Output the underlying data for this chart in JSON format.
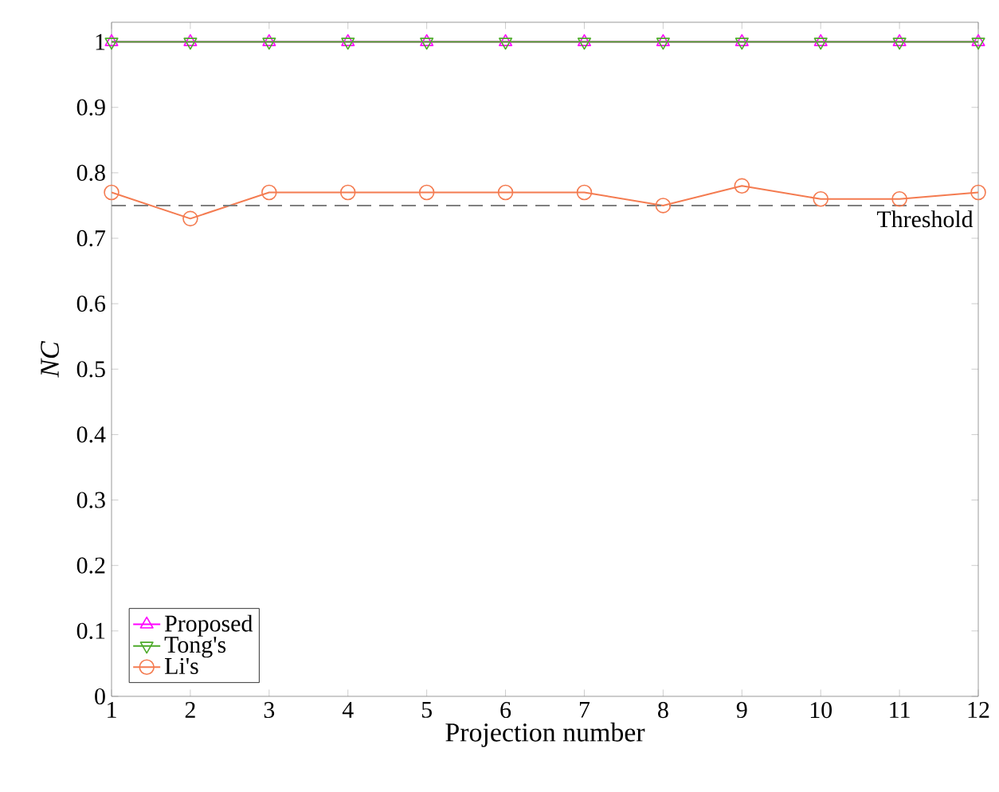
{
  "chart_data": {
    "type": "line",
    "xlabel": "Projection number",
    "ylabel": "NC",
    "x": [
      1,
      2,
      3,
      4,
      5,
      6,
      7,
      8,
      9,
      10,
      11,
      12
    ],
    "series": [
      {
        "name": "Proposed",
        "color": "#ff00ff",
        "marker": "triangle",
        "values": [
          1,
          1,
          1,
          1,
          1,
          1,
          1,
          1,
          1,
          1,
          1,
          1
        ]
      },
      {
        "name": "Tong's",
        "color": "#4daa2a",
        "marker": "triangle-down",
        "values": [
          1,
          1,
          1,
          1,
          1,
          1,
          1,
          1,
          1,
          1,
          1,
          1
        ]
      },
      {
        "name": "Li's",
        "color": "#f47b50",
        "marker": "circle",
        "values": [
          0.77,
          0.73,
          0.77,
          0.77,
          0.77,
          0.77,
          0.77,
          0.75,
          0.78,
          0.76,
          0.76,
          0.77
        ]
      }
    ],
    "ref_lines": [
      {
        "axis": "y",
        "value": 0.75,
        "label": "Threshold",
        "color": "#808080",
        "line_style": "dashed"
      }
    ],
    "xlim": [
      1,
      12
    ],
    "ylim": [
      0,
      1.03
    ],
    "xticks": [
      1,
      2,
      3,
      4,
      5,
      6,
      7,
      8,
      9,
      10,
      11,
      12
    ],
    "yticks": [
      0,
      0.1,
      0.2,
      0.3,
      0.4,
      0.5,
      0.6,
      0.7,
      0.8,
      0.9,
      1
    ],
    "legend": "bottom left",
    "grid": false,
    "line_style": "solid"
  }
}
